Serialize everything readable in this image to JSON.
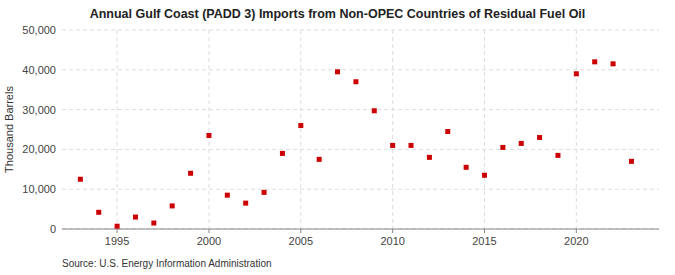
{
  "chart_data": {
    "type": "scatter",
    "title": "Annual Gulf Coast (PADD 3) Imports from Non-OPEC Countries of Residual Fuel Oil",
    "ylabel": "Thousand Barrels",
    "annotations": [
      "Source: U.S. Energy Information Administration"
    ],
    "x": [
      1993,
      1994,
      1995,
      1996,
      1997,
      1998,
      1999,
      2000,
      2001,
      2002,
      2003,
      2004,
      2005,
      2006,
      2007,
      2008,
      2009,
      2010,
      2011,
      2012,
      2013,
      2014,
      2015,
      2016,
      2017,
      2018,
      2019,
      2020,
      2021,
      2022,
      2023
    ],
    "values": [
      12500,
      4200,
      700,
      3000,
      1500,
      5800,
      14000,
      23500,
      8500,
      6500,
      9200,
      19000,
      26000,
      17500,
      39500,
      37000,
      29700,
      21000,
      21000,
      18000,
      24500,
      15500,
      13500,
      20500,
      21500,
      23000,
      18500,
      39000,
      42000,
      41500,
      17000
    ],
    "color": "#cc0000",
    "marker": "square",
    "xlim": [
      1992.0,
      2024.5
    ],
    "ylim": [
      0,
      50000
    ],
    "xticks": [
      1995,
      2000,
      2005,
      2010,
      2015,
      2020
    ],
    "yticks": [
      0,
      {
        "value": 10000,
        "label": "10,000"
      },
      {
        "value": 20000,
        "label": "20,000"
      },
      {
        "value": 30000,
        "label": "30,000"
      },
      {
        "value": 40000,
        "label": "40,000"
      },
      {
        "value": 50000,
        "label": "50,000"
      }
    ],
    "grid": true
  }
}
